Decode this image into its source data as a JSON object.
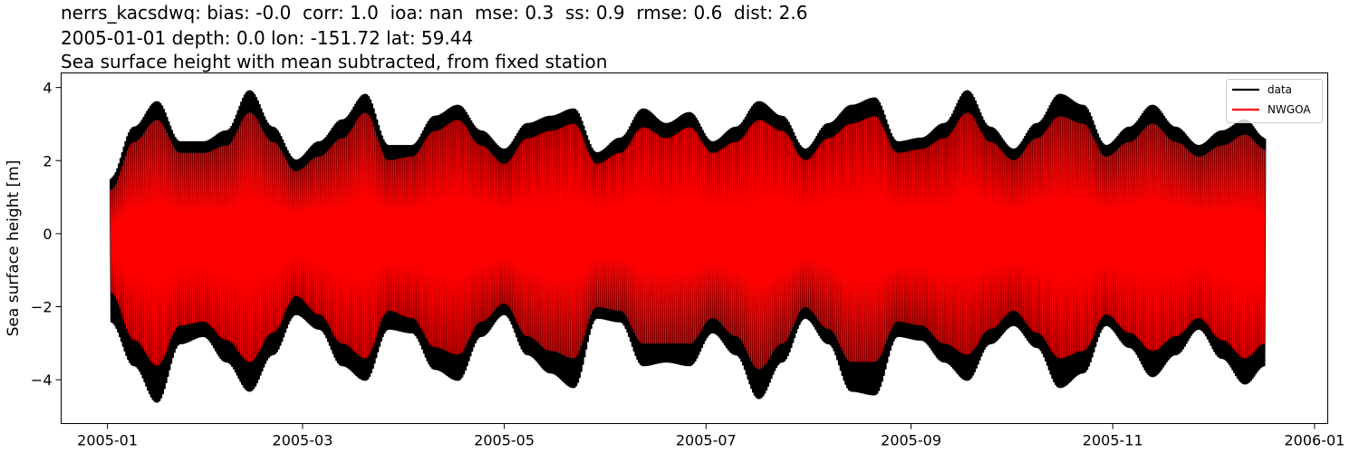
{
  "header": {
    "line1": "nerrs_kacsdwq: bias: -0.0  corr: 1.0  ioa: nan  mse: 0.3  ss: 0.9  rmse: 0.6  dist: 2.6",
    "line2": "2005-01-01 depth: 0.0 lon: -151.72 lat: 59.44",
    "line3": "Sea surface height with mean subtracted, from fixed station"
  },
  "chart_data": {
    "type": "line",
    "title": "nerrs_kacsdwq: bias: -0.0  corr: 1.0  ioa: nan  mse: 0.3  ss: 0.9  rmse: 0.6  dist: 2.6\n2005-01-01 depth: 0.0 lon: -151.72 lat: 59.44\nSea surface height with mean subtracted, from fixed station",
    "xlabel": "",
    "ylabel": "Sea surface height [m]",
    "x_ticks": [
      "2005-01",
      "2005-03",
      "2005-05",
      "2005-07",
      "2005-09",
      "2005-11",
      "2006-01"
    ],
    "y_ticks": [
      -4,
      -2,
      0,
      2,
      4
    ],
    "xlim": [
      "2004-12-18",
      "2006-01-05"
    ],
    "ylim": [
      -5.2,
      4.4
    ],
    "legend_position": "top-right",
    "series_style": "semidiurnal tide envelope (date, max, min)",
    "series": [
      {
        "name": "data",
        "color": "#000000",
        "envelope": [
          [
            "2005-01-02",
            1.5,
            -2.4
          ],
          [
            "2005-01-09",
            2.9,
            -3.6
          ],
          [
            "2005-01-16",
            3.6,
            -4.6
          ],
          [
            "2005-01-23",
            2.5,
            -3.0
          ],
          [
            "2005-01-30",
            2.5,
            -2.8
          ],
          [
            "2005-02-06",
            2.8,
            -3.5
          ],
          [
            "2005-02-13",
            3.9,
            -4.3
          ],
          [
            "2005-02-20",
            2.9,
            -3.3
          ],
          [
            "2005-02-27",
            2.0,
            -2.2
          ],
          [
            "2005-03-06",
            2.5,
            -2.6
          ],
          [
            "2005-03-13",
            3.1,
            -3.6
          ],
          [
            "2005-03-20",
            3.8,
            -4.0
          ],
          [
            "2005-03-27",
            2.4,
            -2.6
          ],
          [
            "2005-04-03",
            2.4,
            -2.7
          ],
          [
            "2005-04-10",
            3.2,
            -3.7
          ],
          [
            "2005-04-17",
            3.5,
            -4.0
          ],
          [
            "2005-04-24",
            2.8,
            -2.8
          ],
          [
            "2005-05-01",
            2.3,
            -2.2
          ],
          [
            "2005-05-08",
            3.0,
            -3.3
          ],
          [
            "2005-05-15",
            3.2,
            -3.8
          ],
          [
            "2005-05-22",
            3.4,
            -4.2
          ],
          [
            "2005-05-29",
            2.2,
            -2.3
          ],
          [
            "2005-06-05",
            2.6,
            -2.4
          ],
          [
            "2005-06-12",
            3.4,
            -3.6
          ],
          [
            "2005-06-19",
            3.0,
            -3.5
          ],
          [
            "2005-06-26",
            3.3,
            -3.6
          ],
          [
            "2005-07-03",
            2.5,
            -2.7
          ],
          [
            "2005-07-10",
            2.9,
            -3.3
          ],
          [
            "2005-07-17",
            3.6,
            -4.5
          ],
          [
            "2005-07-24",
            3.2,
            -3.5
          ],
          [
            "2005-07-31",
            2.3,
            -2.3
          ],
          [
            "2005-08-07",
            3.0,
            -3.0
          ],
          [
            "2005-08-14",
            3.5,
            -4.3
          ],
          [
            "2005-08-21",
            3.7,
            -4.4
          ],
          [
            "2005-08-28",
            2.5,
            -2.8
          ],
          [
            "2005-09-04",
            2.6,
            -2.9
          ],
          [
            "2005-09-11",
            3.0,
            -3.5
          ],
          [
            "2005-09-18",
            3.9,
            -4.0
          ],
          [
            "2005-09-25",
            2.9,
            -3.0
          ],
          [
            "2005-10-02",
            2.3,
            -2.5
          ],
          [
            "2005-10-09",
            3.0,
            -3.1
          ],
          [
            "2005-10-16",
            3.8,
            -4.2
          ],
          [
            "2005-10-23",
            3.5,
            -3.8
          ],
          [
            "2005-10-30",
            2.4,
            -2.5
          ],
          [
            "2005-11-06",
            2.9,
            -3.1
          ],
          [
            "2005-11-13",
            3.5,
            -3.9
          ],
          [
            "2005-11-20",
            2.9,
            -3.3
          ],
          [
            "2005-11-27",
            2.4,
            -2.6
          ],
          [
            "2005-12-04",
            2.8,
            -3.4
          ],
          [
            "2005-12-11",
            3.1,
            -4.1
          ],
          [
            "2005-12-17",
            2.6,
            -3.6
          ]
        ]
      },
      {
        "name": "NWGOA",
        "color": "#ff0000",
        "envelope": [
          [
            "2005-01-02",
            1.2,
            -1.6
          ],
          [
            "2005-01-09",
            2.5,
            -2.9
          ],
          [
            "2005-01-16",
            3.1,
            -3.6
          ],
          [
            "2005-01-23",
            2.2,
            -2.5
          ],
          [
            "2005-01-30",
            2.2,
            -2.4
          ],
          [
            "2005-02-06",
            2.4,
            -2.9
          ],
          [
            "2005-02-13",
            3.3,
            -3.5
          ],
          [
            "2005-02-20",
            2.5,
            -2.7
          ],
          [
            "2005-02-27",
            1.7,
            -1.7
          ],
          [
            "2005-03-06",
            2.1,
            -2.2
          ],
          [
            "2005-03-13",
            2.6,
            -3.0
          ],
          [
            "2005-03-20",
            3.3,
            -3.4
          ],
          [
            "2005-03-27",
            2.0,
            -2.1
          ],
          [
            "2005-04-03",
            2.1,
            -2.3
          ],
          [
            "2005-04-10",
            2.8,
            -3.1
          ],
          [
            "2005-04-17",
            3.1,
            -3.3
          ],
          [
            "2005-04-24",
            2.4,
            -2.4
          ],
          [
            "2005-05-01",
            1.9,
            -1.9
          ],
          [
            "2005-05-08",
            2.6,
            -2.8
          ],
          [
            "2005-05-15",
            2.8,
            -3.2
          ],
          [
            "2005-05-22",
            3.0,
            -3.4
          ],
          [
            "2005-05-29",
            1.9,
            -2.0
          ],
          [
            "2005-06-05",
            2.2,
            -2.1
          ],
          [
            "2005-06-12",
            2.9,
            -3.0
          ],
          [
            "2005-06-19",
            2.6,
            -3.0
          ],
          [
            "2005-06-26",
            2.9,
            -3.0
          ],
          [
            "2005-07-03",
            2.2,
            -2.3
          ],
          [
            "2005-07-10",
            2.5,
            -2.8
          ],
          [
            "2005-07-17",
            3.1,
            -3.7
          ],
          [
            "2005-07-24",
            2.8,
            -3.0
          ],
          [
            "2005-07-31",
            2.0,
            -2.0
          ],
          [
            "2005-08-07",
            2.6,
            -2.6
          ],
          [
            "2005-08-14",
            3.0,
            -3.5
          ],
          [
            "2005-08-21",
            3.2,
            -3.5
          ],
          [
            "2005-08-28",
            2.2,
            -2.4
          ],
          [
            "2005-09-04",
            2.3,
            -2.5
          ],
          [
            "2005-09-11",
            2.6,
            -3.0
          ],
          [
            "2005-09-18",
            3.3,
            -3.3
          ],
          [
            "2005-09-25",
            2.5,
            -2.6
          ],
          [
            "2005-10-02",
            2.0,
            -2.1
          ],
          [
            "2005-10-09",
            2.6,
            -2.7
          ],
          [
            "2005-10-16",
            3.2,
            -3.4
          ],
          [
            "2005-10-23",
            3.0,
            -3.2
          ],
          [
            "2005-10-30",
            2.1,
            -2.2
          ],
          [
            "2005-11-06",
            2.5,
            -2.7
          ],
          [
            "2005-11-13",
            3.0,
            -3.2
          ],
          [
            "2005-11-20",
            2.5,
            -2.8
          ],
          [
            "2005-11-27",
            2.1,
            -2.3
          ],
          [
            "2005-12-04",
            2.4,
            -2.9
          ],
          [
            "2005-12-11",
            2.7,
            -3.4
          ],
          [
            "2005-12-17",
            2.3,
            -3.0
          ]
        ]
      }
    ]
  }
}
